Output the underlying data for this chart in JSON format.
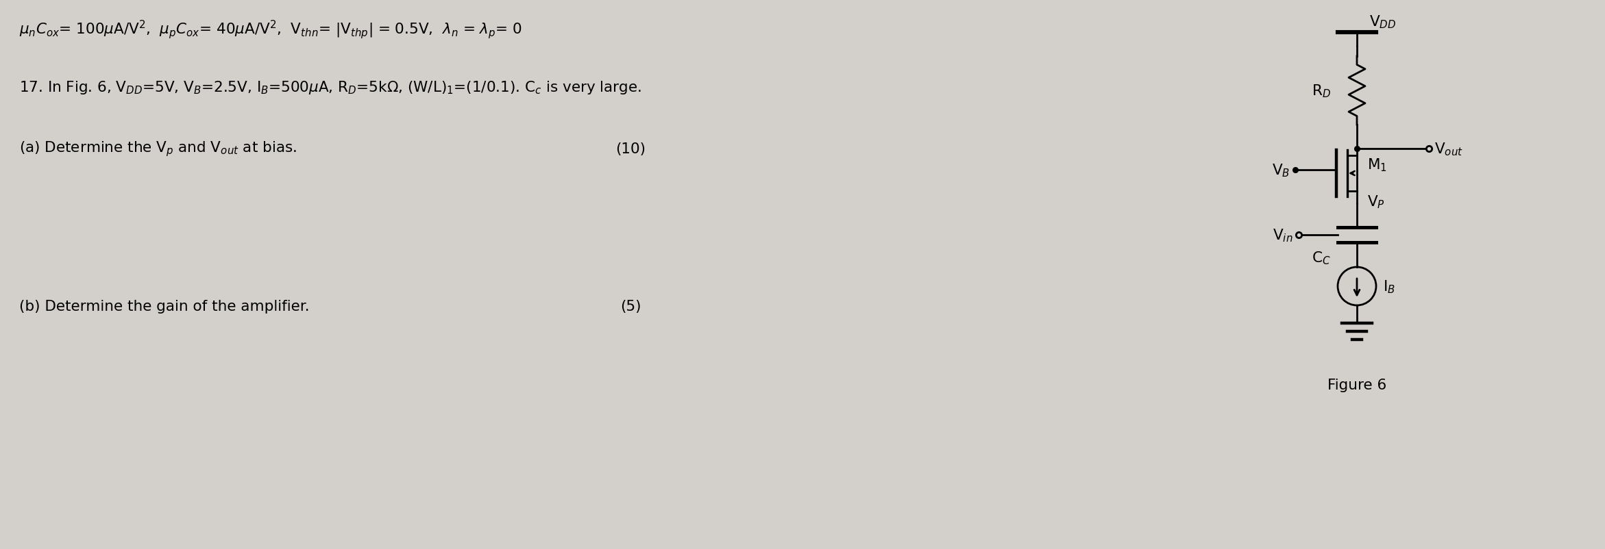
{
  "bg_color": "#d3cfcb",
  "text_color": "#000000",
  "fig_width": 23.42,
  "fig_height": 8.03,
  "figure_label": "Figure 6"
}
